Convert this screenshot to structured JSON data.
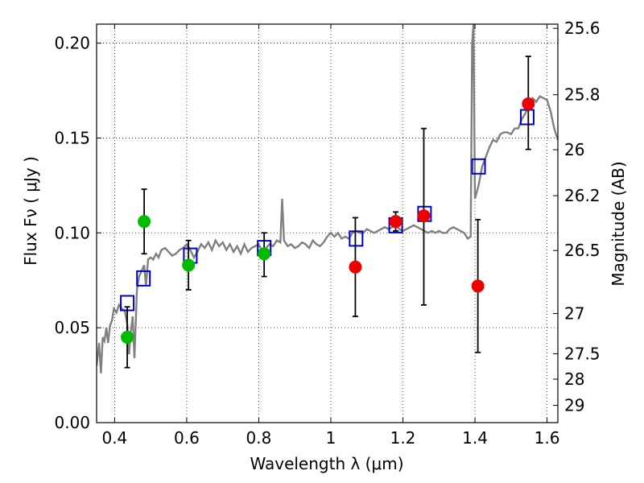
{
  "chart_data": {
    "type": "scatter",
    "xlabel": "Wavelength  λ (μm)",
    "ylabel": "Flux  Fν  ( μJy )",
    "ylabel_right": "Magnitude (AB)",
    "xlim": [
      0.35,
      1.63
    ],
    "ylim": [
      0.0,
      0.21
    ],
    "grid": true,
    "x_ticks": [
      0.4,
      0.6,
      0.8,
      1.0,
      1.2,
      1.4,
      1.6
    ],
    "x_tick_labels": [
      "0.4",
      "0.6",
      "0.8",
      "1",
      "1.2",
      "1.4",
      "1.6"
    ],
    "y_ticks": [
      0.0,
      0.05,
      0.1,
      0.15,
      0.2
    ],
    "y_tick_labels": [
      "0.00",
      "0.05",
      "0.10",
      "0.15",
      "0.20"
    ],
    "right_ticks": [
      {
        "label": "25.6",
        "flux": 0.2078
      },
      {
        "label": "25.8",
        "flux": 0.1728
      },
      {
        "label": "26",
        "flux": 0.1438
      },
      {
        "label": "26.2",
        "flux": 0.1196
      },
      {
        "label": "26.5",
        "flux": 0.0907
      },
      {
        "label": "27",
        "flux": 0.0575
      },
      {
        "label": "27.5",
        "flux": 0.0363
      },
      {
        "label": "28",
        "flux": 0.0229
      },
      {
        "label": "29",
        "flux": 0.0091
      }
    ],
    "series": [
      {
        "kind": "line",
        "color": "#808080",
        "points": [
          [
            0.35,
            0.03
          ],
          [
            0.357,
            0.042
          ],
          [
            0.362,
            0.026
          ],
          [
            0.367,
            0.045
          ],
          [
            0.372,
            0.043
          ],
          [
            0.377,
            0.05
          ],
          [
            0.382,
            0.042
          ],
          [
            0.387,
            0.051
          ],
          [
            0.393,
            0.054
          ],
          [
            0.398,
            0.06
          ],
          [
            0.405,
            0.058
          ],
          [
            0.412,
            0.062
          ],
          [
            0.42,
            0.06
          ],
          [
            0.428,
            0.059
          ],
          [
            0.435,
            0.052
          ],
          [
            0.44,
            0.036
          ],
          [
            0.445,
            0.048
          ],
          [
            0.45,
            0.056
          ],
          [
            0.455,
            0.034
          ],
          [
            0.462,
            0.07
          ],
          [
            0.468,
            0.077
          ],
          [
            0.475,
            0.08
          ],
          [
            0.482,
            0.083
          ],
          [
            0.487,
            0.072
          ],
          [
            0.493,
            0.086
          ],
          [
            0.5,
            0.087
          ],
          [
            0.507,
            0.086
          ],
          [
            0.515,
            0.089
          ],
          [
            0.522,
            0.087
          ],
          [
            0.53,
            0.091
          ],
          [
            0.54,
            0.092
          ],
          [
            0.55,
            0.09
          ],
          [
            0.56,
            0.088
          ],
          [
            0.57,
            0.089
          ],
          [
            0.58,
            0.091
          ],
          [
            0.59,
            0.092
          ],
          [
            0.6,
            0.094
          ],
          [
            0.61,
            0.091
          ],
          [
            0.62,
            0.087
          ],
          [
            0.63,
            0.09
          ],
          [
            0.64,
            0.094
          ],
          [
            0.65,
            0.092
          ],
          [
            0.66,
            0.095
          ],
          [
            0.67,
            0.091
          ],
          [
            0.68,
            0.096
          ],
          [
            0.69,
            0.093
          ],
          [
            0.7,
            0.095
          ],
          [
            0.71,
            0.091
          ],
          [
            0.72,
            0.094
          ],
          [
            0.73,
            0.09
          ],
          [
            0.74,
            0.093
          ],
          [
            0.75,
            0.089
          ],
          [
            0.76,
            0.094
          ],
          [
            0.77,
            0.09
          ],
          [
            0.78,
            0.092
          ],
          [
            0.79,
            0.093
          ],
          [
            0.8,
            0.094
          ],
          [
            0.81,
            0.09
          ],
          [
            0.82,
            0.092
          ],
          [
            0.83,
            0.094
          ],
          [
            0.84,
            0.093
          ],
          [
            0.85,
            0.096
          ],
          [
            0.86,
            0.095
          ],
          [
            0.865,
            0.118
          ],
          [
            0.87,
            0.096
          ],
          [
            0.88,
            0.093
          ],
          [
            0.89,
            0.094
          ],
          [
            0.9,
            0.092
          ],
          [
            0.91,
            0.093
          ],
          [
            0.92,
            0.095
          ],
          [
            0.93,
            0.094
          ],
          [
            0.94,
            0.092
          ],
          [
            0.95,
            0.096
          ],
          [
            0.96,
            0.094
          ],
          [
            0.97,
            0.093
          ],
          [
            0.98,
            0.095
          ],
          [
            0.99,
            0.098
          ],
          [
            1.0,
            0.1
          ],
          [
            1.01,
            0.098
          ],
          [
            1.02,
            0.1
          ],
          [
            1.03,
            0.097
          ],
          [
            1.04,
            0.098
          ],
          [
            1.05,
            0.097
          ],
          [
            1.06,
            0.1
          ],
          [
            1.07,
            0.101
          ],
          [
            1.08,
            0.1
          ],
          [
            1.09,
            0.1
          ],
          [
            1.1,
            0.102
          ],
          [
            1.11,
            0.101
          ],
          [
            1.12,
            0.1
          ],
          [
            1.13,
            0.101
          ],
          [
            1.14,
            0.102
          ],
          [
            1.15,
            0.103
          ],
          [
            1.16,
            0.102
          ],
          [
            1.17,
            0.103
          ],
          [
            1.18,
            0.104
          ],
          [
            1.19,
            0.102
          ],
          [
            1.2,
            0.101
          ],
          [
            1.21,
            0.102
          ],
          [
            1.22,
            0.103
          ],
          [
            1.23,
            0.104
          ],
          [
            1.24,
            0.103
          ],
          [
            1.25,
            0.102
          ],
          [
            1.26,
            0.101
          ],
          [
            1.27,
            0.1
          ],
          [
            1.28,
            0.101
          ],
          [
            1.29,
            0.1
          ],
          [
            1.3,
            0.101
          ],
          [
            1.31,
            0.1
          ],
          [
            1.32,
            0.1
          ],
          [
            1.33,
            0.102
          ],
          [
            1.34,
            0.103
          ],
          [
            1.35,
            0.102
          ],
          [
            1.36,
            0.101
          ],
          [
            1.37,
            0.1
          ],
          [
            1.38,
            0.097
          ],
          [
            1.388,
            0.098
          ],
          [
            1.392,
            0.2
          ],
          [
            1.396,
            0.21
          ],
          [
            1.4,
            0.118
          ],
          [
            1.41,
            0.125
          ],
          [
            1.42,
            0.135
          ],
          [
            1.43,
            0.14
          ],
          [
            1.44,
            0.145
          ],
          [
            1.45,
            0.149
          ],
          [
            1.46,
            0.148
          ],
          [
            1.47,
            0.152
          ],
          [
            1.48,
            0.153
          ],
          [
            1.49,
            0.153
          ],
          [
            1.5,
            0.152
          ],
          [
            1.51,
            0.155
          ],
          [
            1.52,
            0.155
          ],
          [
            1.53,
            0.16
          ],
          [
            1.54,
            0.163
          ],
          [
            1.55,
            0.168
          ],
          [
            1.56,
            0.171
          ],
          [
            1.57,
            0.169
          ],
          [
            1.58,
            0.172
          ],
          [
            1.59,
            0.171
          ],
          [
            1.6,
            0.17
          ],
          [
            1.61,
            0.164
          ],
          [
            1.62,
            0.155
          ],
          [
            1.63,
            0.149
          ]
        ]
      },
      {
        "kind": "model-boxes",
        "color": "#0000cc",
        "points": [
          [
            0.435,
            0.063
          ],
          [
            0.48,
            0.076
          ],
          [
            0.61,
            0.088
          ],
          [
            0.815,
            0.092
          ],
          [
            1.07,
            0.097
          ],
          [
            1.18,
            0.104
          ],
          [
            1.26,
            0.11
          ],
          [
            1.41,
            0.135
          ],
          [
            1.545,
            0.161
          ]
        ]
      },
      {
        "kind": "points",
        "color": "#00bb00",
        "points": [
          {
            "x": 0.435,
            "y": 0.045,
            "lo": 0.029,
            "hi": 0.061
          },
          {
            "x": 0.482,
            "y": 0.106,
            "lo": 0.089,
            "hi": 0.123
          },
          {
            "x": 0.605,
            "y": 0.083,
            "lo": 0.07,
            "hi": 0.096
          },
          {
            "x": 0.815,
            "y": 0.089,
            "lo": 0.077,
            "hi": 0.1
          }
        ]
      },
      {
        "kind": "points",
        "color": "#ee0000",
        "points": [
          {
            "x": 1.068,
            "y": 0.082,
            "lo": 0.056,
            "hi": 0.108
          },
          {
            "x": 1.18,
            "y": 0.106,
            "lo": 0.101,
            "hi": 0.111
          },
          {
            "x": 1.258,
            "y": 0.109,
            "lo": 0.062,
            "hi": 0.155
          },
          {
            "x": 1.408,
            "y": 0.072,
            "lo": 0.037,
            "hi": 0.107
          },
          {
            "x": 1.548,
            "y": 0.168,
            "lo": 0.144,
            "hi": 0.193
          }
        ]
      }
    ]
  }
}
